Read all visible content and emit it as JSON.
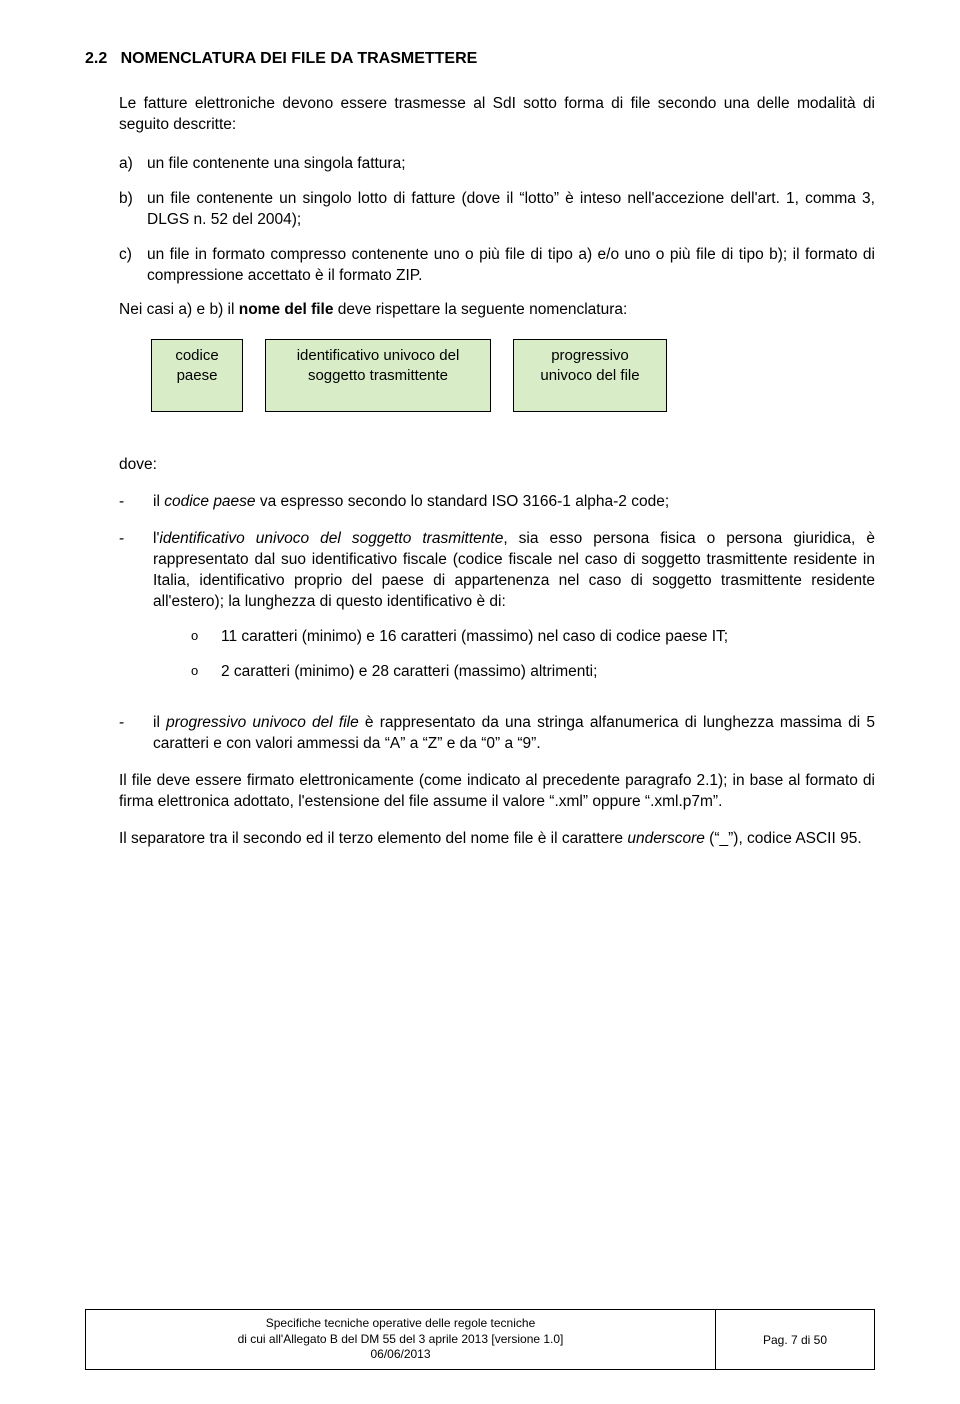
{
  "section": {
    "number": "2.2",
    "title": "NOMENCLATURA DEI FILE DA TRASMETTERE"
  },
  "intro": "Le fatture elettroniche devono essere trasmesse al SdI sotto forma di file secondo una delle modalità di seguito descritte:",
  "main_list": {
    "a": "un file contenente una singola fattura;",
    "b": "un file contenente un singolo lotto di fatture (dove il “lotto” è inteso nell'accezione dell'art. 1, comma 3, DLGS n. 52 del 2004);",
    "c": "un file in formato compresso  contenente uno o più file di tipo a)  e/o uno o più file di tipo b); il formato di compressione accettato è il formato ZIP."
  },
  "nom_intro_prefix": "Nei casi a)  e  b) il ",
  "nom_intro_bold": "nome del file",
  "nom_intro_suffix": " deve rispettare la seguente nomenclatura:",
  "boxes": {
    "box1": "codice paese",
    "box2": "identificativo univoco del soggetto trasmittente",
    "box3": "progressivo univoco del file",
    "bg_color": "#d8ecc8",
    "border_color": "#000000"
  },
  "dove_label": "dove:",
  "dash_items": {
    "d1_pre": "il ",
    "d1_it": "codice paese",
    "d1_post": " va espresso secondo lo standard ISO 3166-1 alpha-2 code;",
    "d2_pre": "l'",
    "d2_it": "identificativo univoco del soggetto trasmittente",
    "d2_post": ", sia esso persona fisica o persona giuridica, è rappresentato dal suo identificativo fiscale (codice fiscale nel caso di soggetto trasmittente residente in Italia, identificativo proprio del paese di appartenenza nel caso di soggetto trasmittente residente all'estero); la lunghezza di questo identificativo è di:",
    "sub_o1": "11 caratteri (minimo) e 16 caratteri (massimo) nel caso di codice paese IT;",
    "sub_o2": "2 caratteri (minimo) e 28 caratteri (massimo) altrimenti;",
    "d3_pre": "il ",
    "d3_it": "progressivo univoco del file",
    "d3_post": " è rappresentato da una stringa alfanumerica di lunghezza massima di 5 caratteri e con valori ammessi da “A” a “Z” e da “0” a “9”."
  },
  "para1": "Il file deve essere firmato elettronicamente (come indicato al precedente paragrafo 2.1); in base al formato di firma elettronica adottato, l'estensione del file assume il valore “.xml” oppure “.xml.p7m”.",
  "para2_pre": "Il separatore tra il secondo ed il terzo elemento del nome file è il carattere ",
  "para2_it": "underscore",
  "para2_post": " (“_”), codice ASCII 95.",
  "footer": {
    "line1": "Specifiche tecniche operative delle regole tecniche",
    "line2": "di cui all'Allegato B del DM 55 del 3 aprile 2013 [versione 1.0]",
    "line3": "06/06/2013",
    "page": "Pag. 7 di 50"
  }
}
